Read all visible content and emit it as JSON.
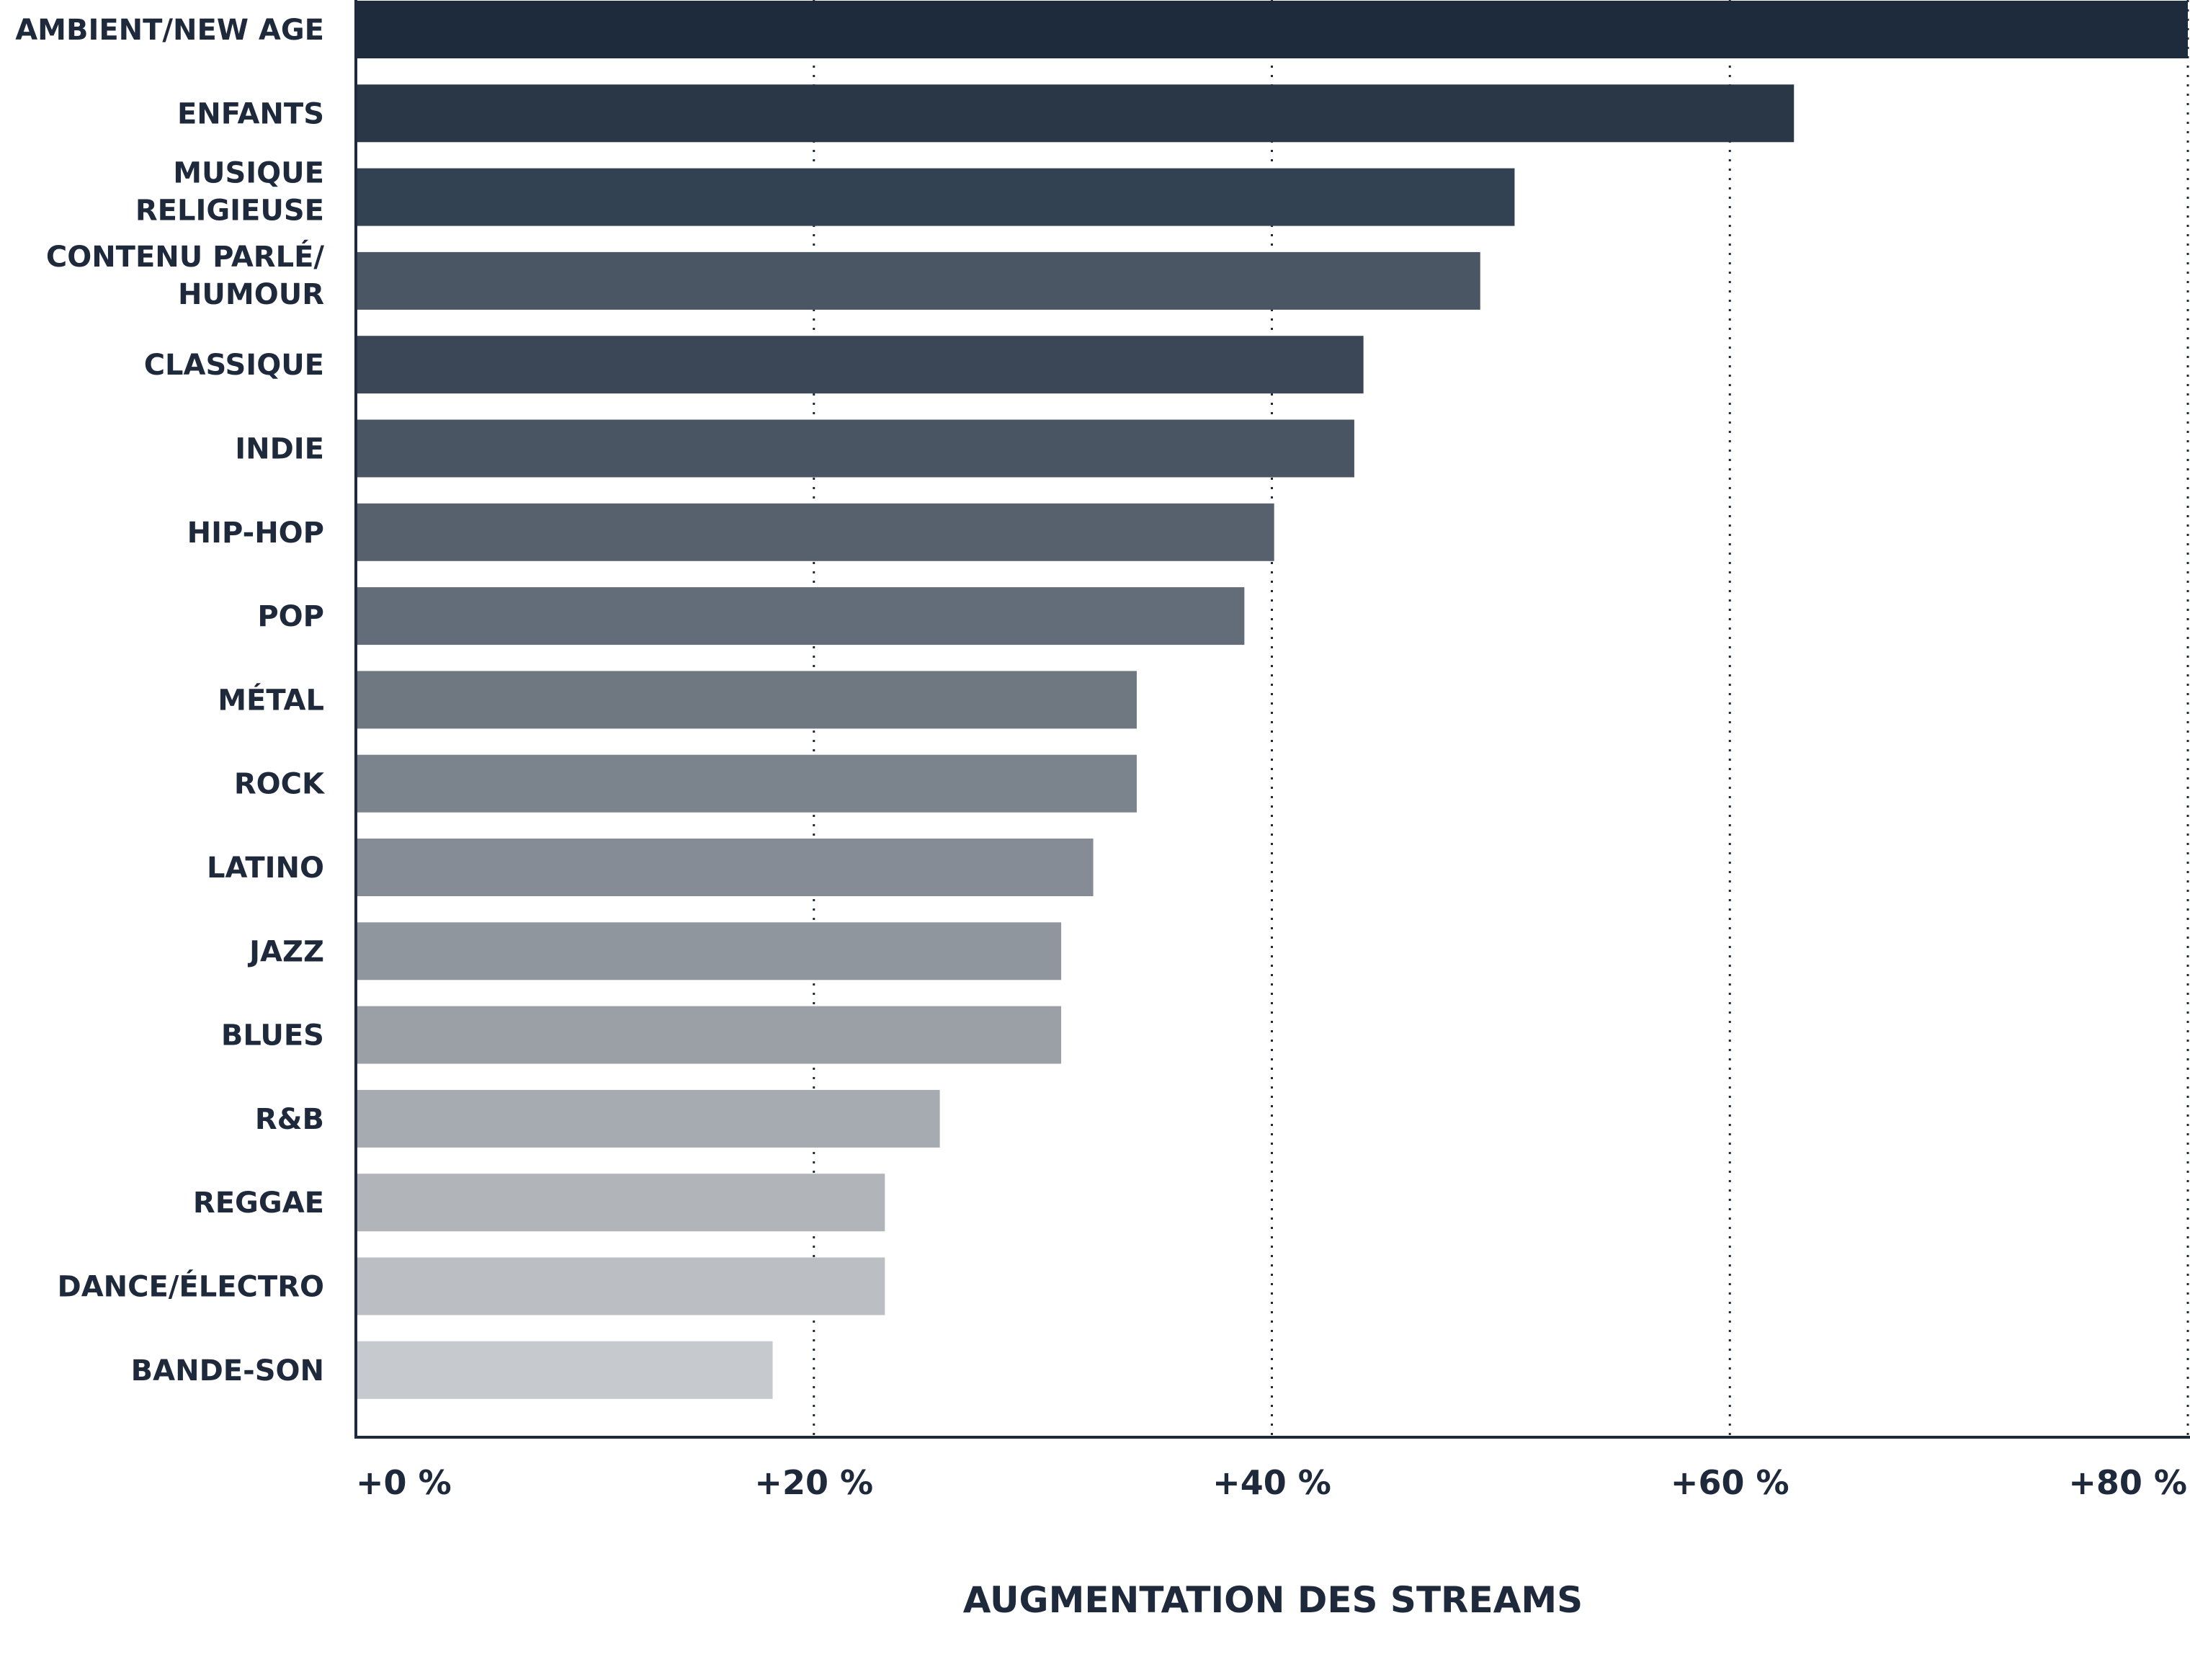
{
  "chart_data": {
    "type": "bar",
    "orientation": "horizontal",
    "categories": [
      [
        "AMBIENT/NEW AGE"
      ],
      [
        "ENFANTS"
      ],
      [
        "MUSIQUE",
        "RELIGIEUSE"
      ],
      [
        "CONTENU PARLÉ/",
        "HUMOUR"
      ],
      [
        "CLASSIQUE"
      ],
      [
        "INDIE"
      ],
      [
        "HIP-HOP"
      ],
      [
        "POP"
      ],
      [
        "MÉTAL"
      ],
      [
        "ROCK"
      ],
      [
        "LATINO"
      ],
      [
        "JAZZ"
      ],
      [
        "BLUES"
      ],
      [
        "R&B"
      ],
      [
        "REGGAE"
      ],
      [
        "DANCE/ÉLECTRO"
      ],
      [
        "BANDE-SON"
      ]
    ],
    "values": [
      80,
      62.8,
      50.6,
      49.1,
      44.0,
      43.6,
      40.1,
      38.8,
      34.1,
      34.1,
      32.2,
      30.8,
      30.8,
      25.5,
      23.1,
      23.1,
      18.2
    ],
    "colors": [
      "#1e2b3c",
      "#293746",
      "#334252",
      "#4b5665",
      "#3b4756",
      "#4a5563",
      "#57616e",
      "#636c79",
      "#6f7781",
      "#7b838c",
      "#858c95",
      "#90969e",
      "#9ba0a7",
      "#a6abb1",
      "#b1b5ba",
      "#bbbec3",
      "#c6c9cd"
    ],
    "xlim": [
      0,
      80
    ],
    "xticks": [
      0,
      20,
      40,
      60,
      80
    ],
    "xtick_labels": [
      "+0 %",
      "+20 %",
      "+40 %",
      "+60 %",
      "+80 %"
    ],
    "xlabel": "AUGMENTATION DES STREAMS",
    "title": "",
    "grid": "vertical-dotted"
  }
}
